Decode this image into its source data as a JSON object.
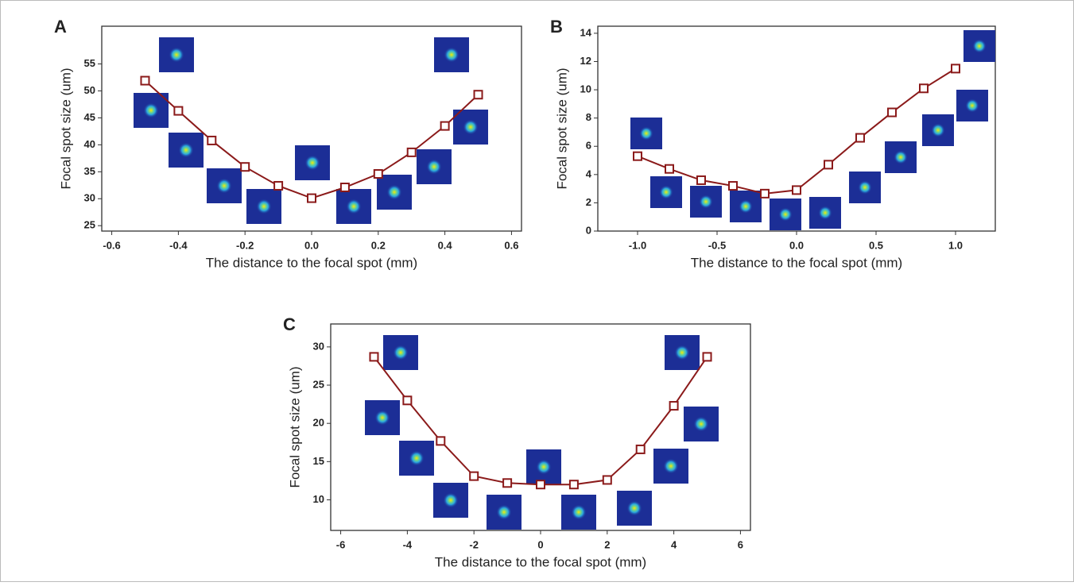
{
  "chart_data": [
    {
      "type": "line",
      "label": "A",
      "x_label": "The distance to the focal spot (mm)",
      "y_label": "Focal spot size (um)",
      "x": [
        -0.5,
        -0.4,
        -0.3,
        -0.2,
        -0.1,
        0.0,
        0.1,
        0.2,
        0.3,
        0.4,
        0.5
      ],
      "series": [
        {
          "color": "#8b1a1a",
          "values": [
            51.9,
            46.3,
            40.8,
            35.9,
            32.4,
            30.1,
            32.1,
            34.6,
            38.6,
            43.5,
            49.3
          ]
        }
      ],
      "xlim": [
        -0.63,
        0.63
      ],
      "xticks": [
        -0.6,
        -0.4,
        -0.2,
        {
          "value": 0,
          "label": "0.0"
        },
        0.2,
        0.4,
        0.6
      ],
      "ylim": [
        24,
        62
      ],
      "yticks": [
        25,
        30,
        35,
        40,
        45,
        50,
        55
      ]
    },
    {
      "type": "line",
      "label": "B",
      "x_label": "The distance to the focal spot (mm)",
      "y_label": "Focal spot size (um)",
      "x": [
        -1.0,
        -0.8,
        -0.6,
        -0.4,
        -0.2,
        0.0,
        0.2,
        0.4,
        0.6,
        0.8,
        1.0
      ],
      "series": [
        {
          "color": "#8b1a1a",
          "values": [
            5.3,
            4.4,
            3.6,
            3.2,
            2.65,
            2.9,
            4.7,
            6.6,
            8.4,
            10.1,
            11.5
          ]
        }
      ],
      "xlim": [
        -1.25,
        1.25
      ],
      "xticks": [
        {
          "value": -1,
          "label": "-1.0"
        },
        -0.5,
        {
          "value": 0,
          "label": "0.0"
        },
        0.5,
        {
          "value": 1,
          "label": "1.0"
        }
      ],
      "ylim": [
        0,
        14.5
      ],
      "yticks": [
        0,
        2,
        4,
        6,
        8,
        10,
        12,
        14
      ]
    },
    {
      "type": "line",
      "label": "C",
      "x_label": "The distance to the focal spot (mm)",
      "y_label": "Focal spot size (um)",
      "x": [
        -5,
        -4,
        -3,
        -2,
        -1,
        0,
        1,
        2,
        3,
        4,
        5
      ],
      "series": [
        {
          "color": "#8b1a1a",
          "values": [
            28.7,
            23.0,
            17.7,
            13.1,
            12.2,
            12.0,
            12.0,
            12.6,
            16.6,
            22.3,
            28.7
          ]
        }
      ],
      "xlim": [
        -6.3,
        6.3
      ],
      "xticks": [
        -6,
        -4,
        -2,
        0,
        2,
        4,
        6
      ],
      "ylim": [
        6,
        33
      ],
      "yticks": [
        10,
        15,
        20,
        25,
        30
      ]
    }
  ]
}
